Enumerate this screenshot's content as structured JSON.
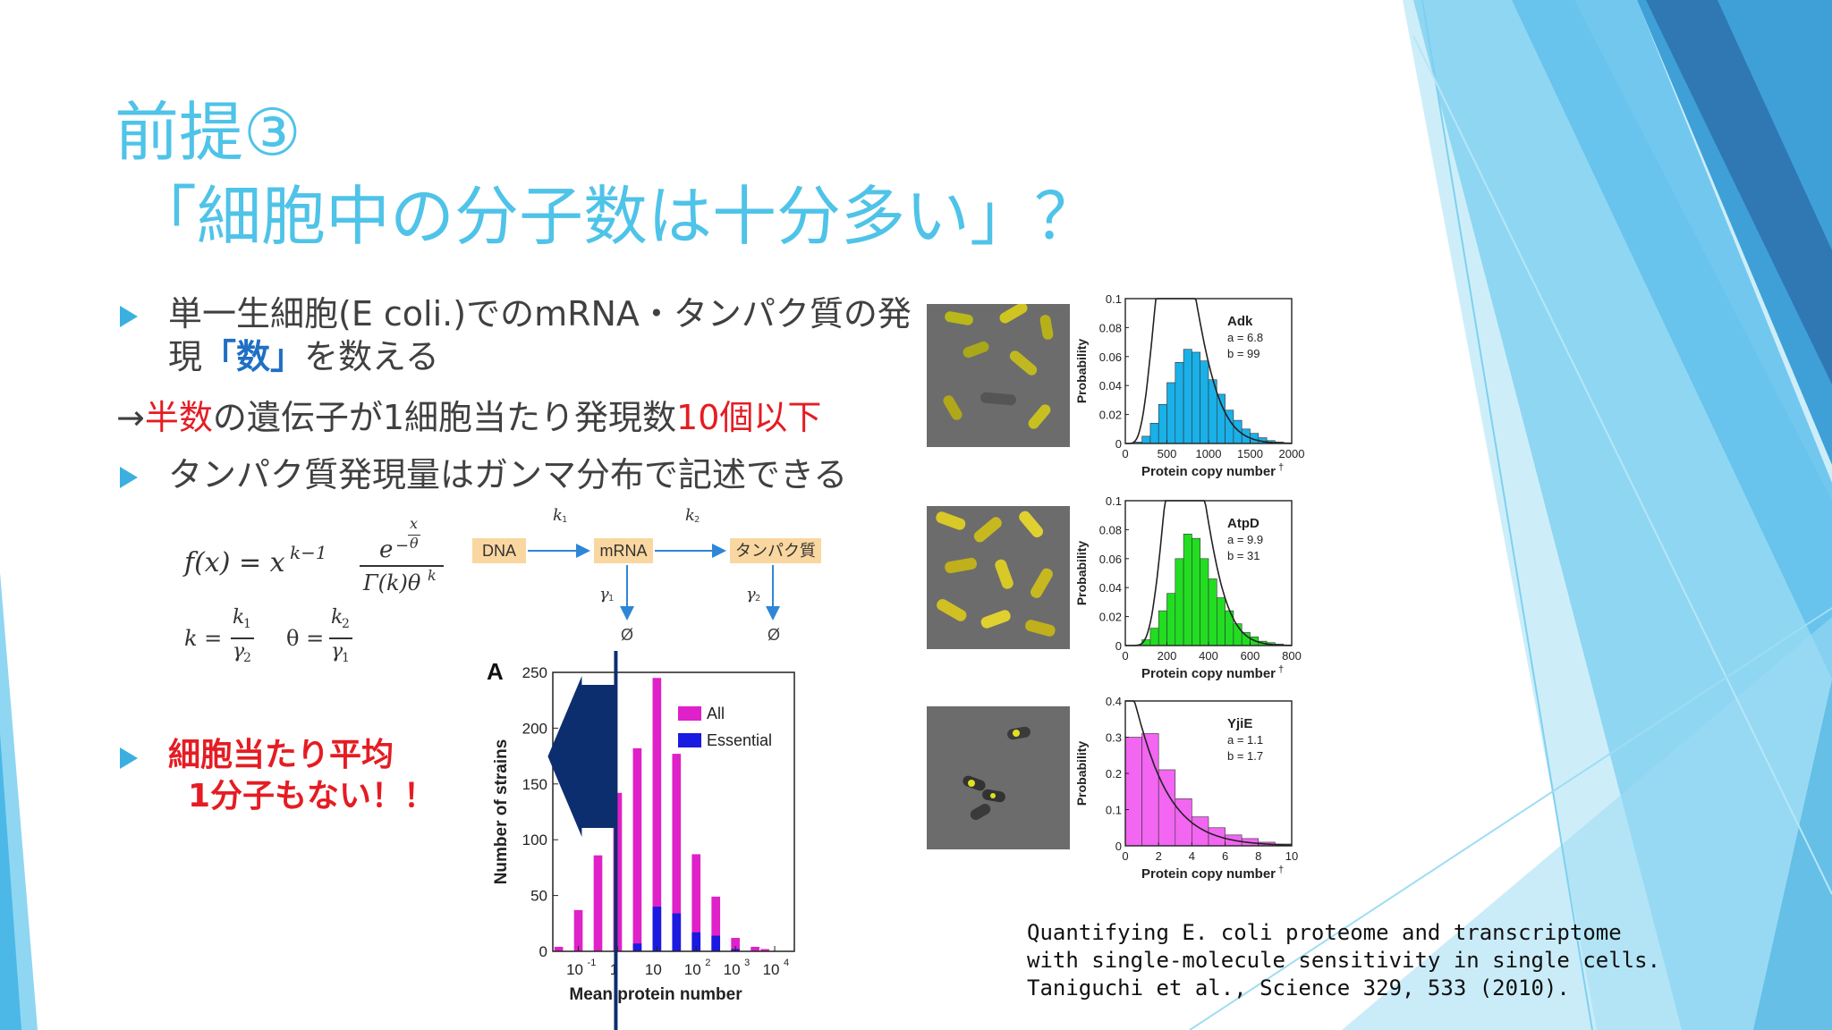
{
  "slide": {
    "title_line1": "前提③",
    "title_line2": "「細胞中の分子数は十分多い」？",
    "bullet1_line1": "単一生細胞(E coli.)でのmRNA・タンパク質の発",
    "bullet1_line2_pre": "現",
    "bullet1_line2_em": "「数」",
    "bullet1_line2_post": "を数える",
    "arrow_line_prefix": "→",
    "arrow_line_em1": "半数",
    "arrow_line_mid": "の遺伝子が1細胞当たり発現数",
    "arrow_line_em2": "10個以下",
    "bullet2": "タンパク質発現量はガンマ分布で記述できる",
    "bullet3_line1": "細胞当たり平均",
    "bullet3_line2": "1分子もない！！",
    "citation_line1": "Quantifying E. coli proteome and transcriptome",
    "citation_line2": "with single-molecule sensitivity in single cells.",
    "citation_line3": "Taniguchi et al., Science 329, 533 (2010).",
    "accent_color": "#4fc3e8",
    "emphasis_red": "#e51c23"
  },
  "formula": {
    "f_lhs": "f(x) = x",
    "f_exp": "k−1",
    "e_base": "e",
    "e_exp_sign": "−",
    "e_exp_num": "x",
    "e_exp_den": "θ",
    "denominator": "Γ(k)θ",
    "den_exp": "k",
    "k_lhs": "k =",
    "k_num": "k",
    "k_num_sub": "1",
    "k_den": "γ",
    "k_den_sub": "2",
    "theta_lhs": "θ =",
    "theta_num": "k",
    "theta_num_sub": "2",
    "theta_den": "γ",
    "theta_den_sub": "1"
  },
  "pathway": {
    "node_dna": "DNA",
    "node_mrna": "mRNA",
    "node_protein": "タンパク質",
    "k1": "k",
    "k1_sub": "1",
    "k2": "k",
    "k2_sub": "2",
    "g1": "γ",
    "g1_sub": "1",
    "g2": "γ",
    "g2_sub": "2",
    "null1": "Ø",
    "null2": "Ø",
    "node_color": "#fad7a0",
    "arrow_color": "#2e86d6"
  },
  "chart_data": [
    {
      "type": "bar",
      "panel_label": "A",
      "xlabel": "Mean protein number",
      "ylabel": "Number of strains",
      "ylim": [
        0,
        250
      ],
      "yticks": [
        "0",
        "50",
        "100",
        "150",
        "200",
        "250"
      ],
      "x_scale": "log",
      "xticks": [
        "10",
        "1",
        "10",
        "10",
        "10",
        "10"
      ],
      "xtick_exps": [
        "-1",
        "",
        "",
        "2",
        "3",
        "4"
      ],
      "categories": [
        -1.5,
        -1.25,
        -1.0,
        -0.75,
        -0.5,
        -0.25,
        0.0,
        0.25,
        0.5,
        0.75,
        1.0,
        1.25,
        1.5,
        1.75,
        2.0,
        2.25,
        2.5,
        2.75,
        3.0,
        3.25,
        3.5,
        3.75
      ],
      "series": [
        {
          "name": "All",
          "color": "#e020c8",
          "values": [
            4,
            0,
            37,
            0,
            86,
            0,
            142,
            0,
            182,
            0,
            245,
            0,
            177,
            0,
            87,
            0,
            49,
            0,
            12,
            0,
            4,
            2
          ]
        },
        {
          "name": "Essential",
          "color": "#1a1ae0",
          "values": [
            0,
            0,
            0,
            0,
            0,
            0,
            0,
            0,
            7,
            0,
            40,
            0,
            34,
            0,
            17,
            0,
            14,
            0,
            2,
            0,
            0,
            0
          ]
        }
      ],
      "legend_position": "top-right",
      "annotation": "large navy arrow pointing left with vertical line at 1"
    },
    {
      "type": "bar",
      "title": "Adk",
      "params": [
        "a = 6.8",
        "b = 99"
      ],
      "xlabel": "Protein copy number",
      "xlabel_mark": "†",
      "ylabel": "Probability",
      "xlim": [
        0,
        2000
      ],
      "xticks": [
        "0",
        "500",
        "1000",
        "1500",
        "2000"
      ],
      "ylim": [
        0,
        0.1
      ],
      "yticks": [
        "0",
        "0.02",
        "0.04",
        "0.06",
        "0.08",
        "0.1"
      ],
      "bin_width": 100,
      "values": [
        0.0,
        0.001,
        0.005,
        0.014,
        0.027,
        0.042,
        0.056,
        0.065,
        0.063,
        0.057,
        0.044,
        0.034,
        0.023,
        0.016,
        0.01,
        0.007,
        0.004,
        0.002,
        0.001,
        0.0
      ],
      "color": "#1ab0e8",
      "fit": "gamma"
    },
    {
      "type": "bar",
      "title": "AtpD",
      "params": [
        "a = 9.9",
        "b = 31"
      ],
      "xlabel": "Protein copy number",
      "xlabel_mark": "†",
      "ylabel": "Probability",
      "xlim": [
        0,
        800
      ],
      "xticks": [
        "0",
        "200",
        "400",
        "600",
        "800"
      ],
      "ylim": [
        0,
        0.1
      ],
      "yticks": [
        "0",
        "0.02",
        "0.04",
        "0.06",
        "0.08",
        "0.1"
      ],
      "bin_width": 40,
      "values": [
        0.0,
        0.0,
        0.004,
        0.012,
        0.024,
        0.036,
        0.06,
        0.077,
        0.074,
        0.06,
        0.046,
        0.033,
        0.024,
        0.015,
        0.009,
        0.006,
        0.003,
        0.002,
        0.001,
        0.0
      ],
      "color": "#22dd22",
      "fit": "gamma"
    },
    {
      "type": "bar",
      "title": "YjiE",
      "params": [
        "a = 1.1",
        "b = 1.7"
      ],
      "xlabel": "Protein copy number",
      "xlabel_mark": "†",
      "ylabel": "Probability",
      "xlim": [
        0,
        10
      ],
      "xticks": [
        "0",
        "2",
        "4",
        "6",
        "8",
        "10"
      ],
      "ylim": [
        0,
        0.4
      ],
      "yticks": [
        "0",
        "0.1",
        "0.2",
        "0.3",
        "0.4"
      ],
      "bin_width": 1,
      "values": [
        0.3,
        0.31,
        0.21,
        0.13,
        0.08,
        0.05,
        0.03,
        0.02,
        0.01,
        0.005
      ],
      "color": "#f266f2",
      "fit": "gamma"
    }
  ]
}
